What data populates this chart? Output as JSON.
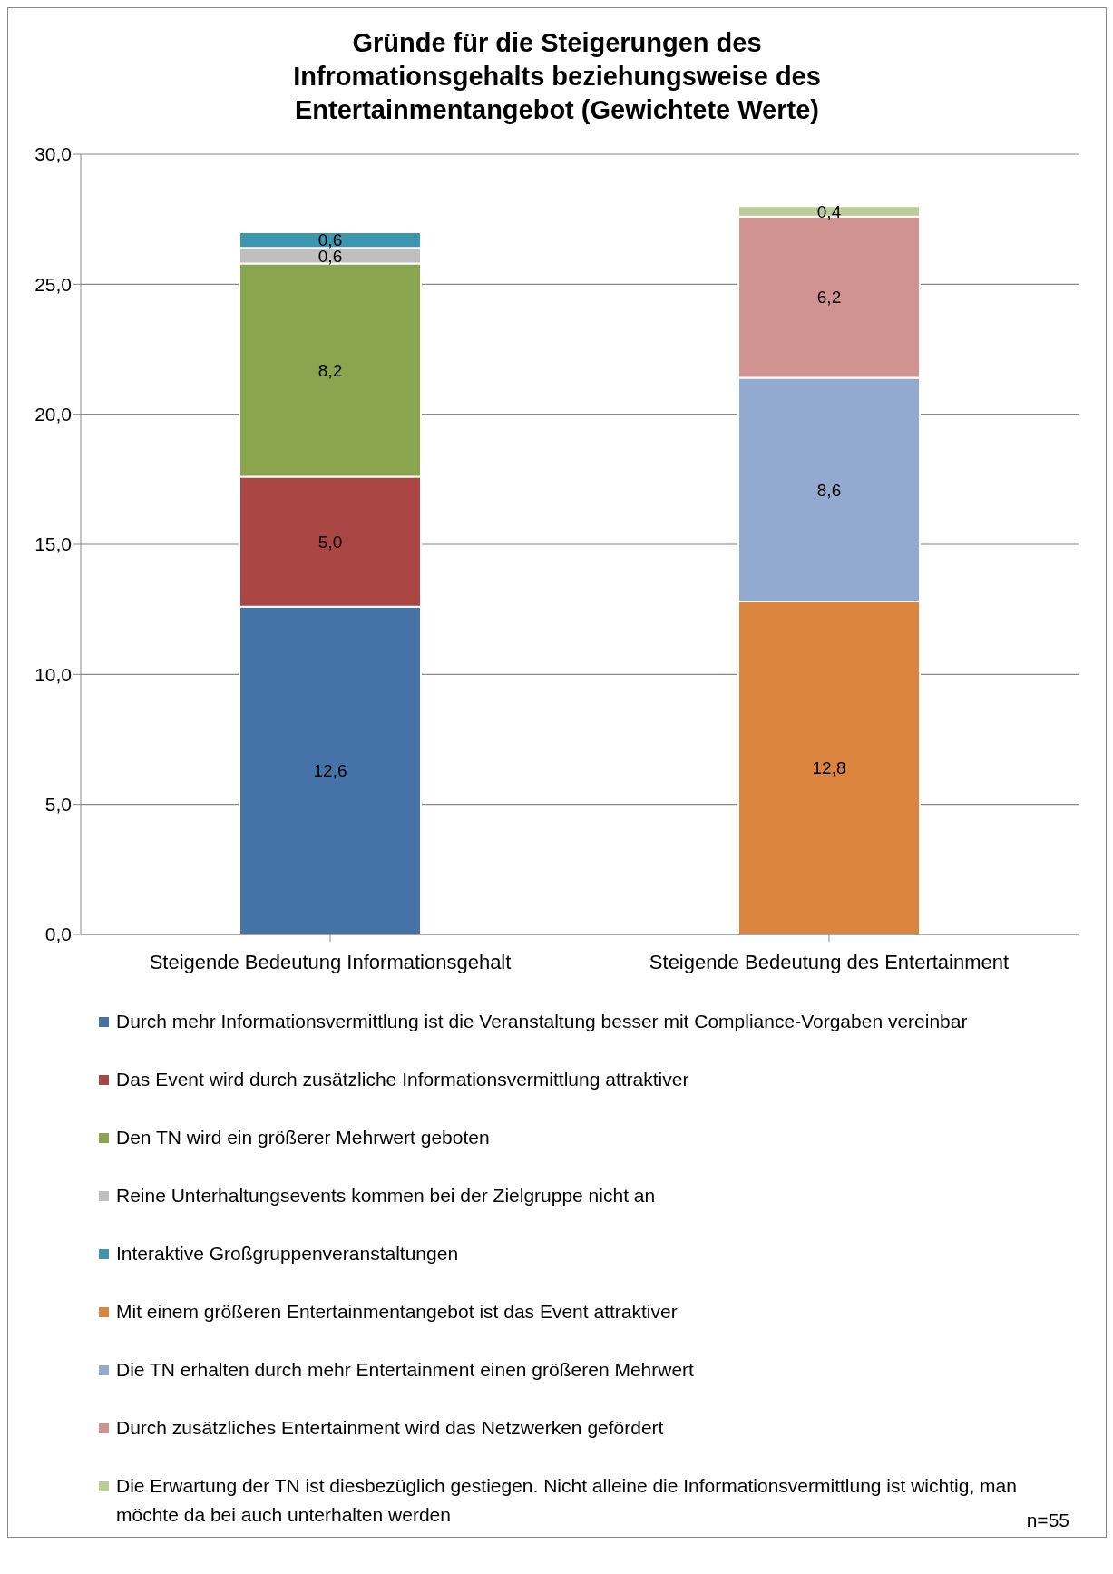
{
  "chart_data": {
    "type": "bar",
    "title": "Gründe für die Steigerungen des Infromationsgehalts beziehungsweise des Entertainmentangebot (Gewichtete Werte)",
    "categories": [
      "Steigende Bedeutung Informationsgehalt",
      "Steigende Bedeutung des Entertainment"
    ],
    "stacked": true,
    "ylim": [
      0,
      30
    ],
    "yticks": [
      {
        "value": 0,
        "label": "0,0"
      },
      {
        "value": 5,
        "label": "5,0"
      },
      {
        "value": 10,
        "label": "10,0"
      },
      {
        "value": 15,
        "label": "15,0"
      },
      {
        "value": 20,
        "label": "20,0"
      },
      {
        "value": 25,
        "label": "25,0"
      },
      {
        "value": 30,
        "label": "30,0"
      }
    ],
    "grid": "y",
    "legend": "bottom",
    "annotations": [
      "n=55"
    ],
    "series": [
      {
        "name": "Durch mehr Informationsvermittlung ist die Veranstaltung besser mit Compliance-Vorgaben vereinbar",
        "color": "#4572a7",
        "values": [
          12.6,
          null
        ],
        "value_labels": [
          "12,6",
          null
        ]
      },
      {
        "name": "Das Event wird durch zusätzliche Informationsvermittlung attraktiver",
        "color": "#aa4643",
        "values": [
          5.0,
          null
        ],
        "value_labels": [
          "5,0",
          null
        ]
      },
      {
        "name": "Den TN wird ein größerer Mehrwert geboten",
        "color": "#89a54e",
        "values": [
          8.2,
          null
        ],
        "value_labels": [
          "8,2",
          null
        ]
      },
      {
        "name": "Reine Unterhaltungsevents kommen bei der Zielgruppe nicht an",
        "color": "#bfbfbf",
        "values": [
          0.6,
          null
        ],
        "value_labels": [
          "0,6",
          null
        ]
      },
      {
        "name": "Interaktive Großgruppenveranstaltungen",
        "color": "#3d96ae",
        "values": [
          0.6,
          null
        ],
        "value_labels": [
          "0,6",
          null
        ]
      },
      {
        "name": "Mit einem größeren Entertainmentangebot ist das Event attraktiver",
        "color": "#db843d",
        "values": [
          null,
          12.8
        ],
        "value_labels": [
          null,
          "12,8"
        ]
      },
      {
        "name": "Die TN erhalten durch mehr Entertainment einen größeren Mehrwert",
        "color": "#93a9cf",
        "values": [
          null,
          8.6
        ],
        "value_labels": [
          null,
          "8,6"
        ]
      },
      {
        "name": "Durch zusätzliches Entertainment wird das Netzwerken gefördert",
        "color": "#d19392",
        "values": [
          null,
          6.2
        ],
        "value_labels": [
          null,
          "6,2"
        ]
      },
      {
        "name": "Die Erwartung der TN ist diesbezüglich gestiegen. Nicht alleine die Informationsvermittlung ist wichtig, man möchte da bei auch unterhalten werden",
        "color": "#b9cd96",
        "values": [
          null,
          0.4
        ],
        "value_labels": [
          null,
          "0,4"
        ]
      }
    ]
  }
}
